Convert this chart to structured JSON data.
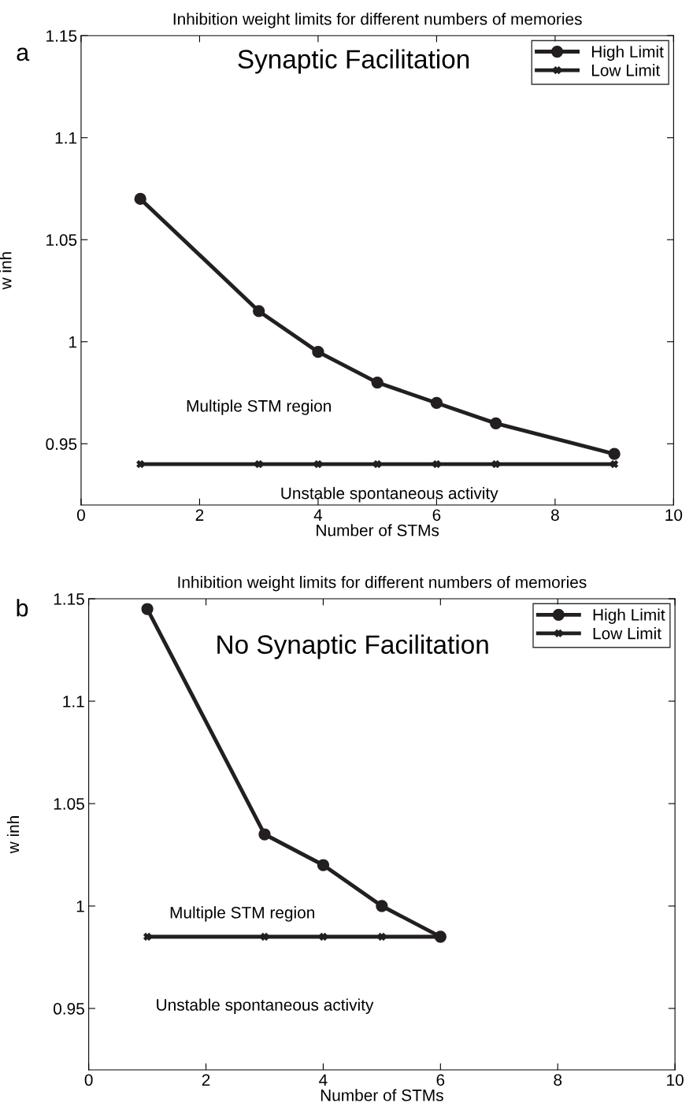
{
  "chart_data": [
    {
      "type": "line",
      "title": "Inhibition weight limits for different numbers of memories",
      "xlabel": "Number of STMs",
      "ylabel": "w inh",
      "series": [
        {
          "name": "High Limit",
          "color": "#231f20",
          "marker": "circle",
          "x": [
            1,
            3,
            4,
            5,
            6,
            7,
            9
          ],
          "values": [
            1.07,
            1.015,
            0.995,
            0.98,
            0.97,
            0.96,
            0.945
          ]
        },
        {
          "name": "Low Limit",
          "color": "#231f20",
          "marker": "cross",
          "x": [
            1,
            3,
            4,
            5,
            6,
            7,
            9
          ],
          "values": [
            0.94,
            0.94,
            0.94,
            0.94,
            0.94,
            0.94,
            0.94
          ]
        }
      ],
      "annotations": [
        "a",
        "Synaptic Facilitation",
        "Multiple STM region",
        "Unstable spontaneous activity"
      ],
      "xlim": [
        0,
        10
      ],
      "xticks": [
        0,
        2,
        4,
        6,
        8,
        10
      ],
      "ylim": [
        0.92,
        1.15
      ],
      "yticks": [
        0.95,
        1,
        1.05,
        1.1,
        1.15
      ],
      "legend": "top right",
      "grid": false,
      "line_style": "solid"
    },
    {
      "type": "line",
      "title": "Inhibition weight limits for different numbers of memories",
      "xlabel": "Number of STMs",
      "ylabel": "w inh",
      "series": [
        {
          "name": "High Limit",
          "color": "#231f20",
          "marker": "circle",
          "x": [
            1,
            3,
            4,
            5,
            6
          ],
          "values": [
            1.145,
            1.035,
            1.02,
            1.0,
            0.985
          ]
        },
        {
          "name": "Low Limit",
          "color": "#231f20",
          "marker": "cross",
          "x": [
            1,
            3,
            4,
            5,
            6
          ],
          "values": [
            0.985,
            0.985,
            0.985,
            0.985,
            0.985
          ]
        }
      ],
      "annotations": [
        "b",
        "No Synaptic Facilitation",
        "Multiple STM region",
        "Unstable spontaneous activity"
      ],
      "xlim": [
        0,
        10
      ],
      "xticks": [
        0,
        2,
        4,
        6,
        8,
        10
      ],
      "ylim": [
        0.92,
        1.15
      ],
      "yticks": [
        0.95,
        1,
        1.05,
        1.1,
        1.15
      ],
      "legend": "top right",
      "grid": false,
      "line_style": "solid"
    }
  ]
}
